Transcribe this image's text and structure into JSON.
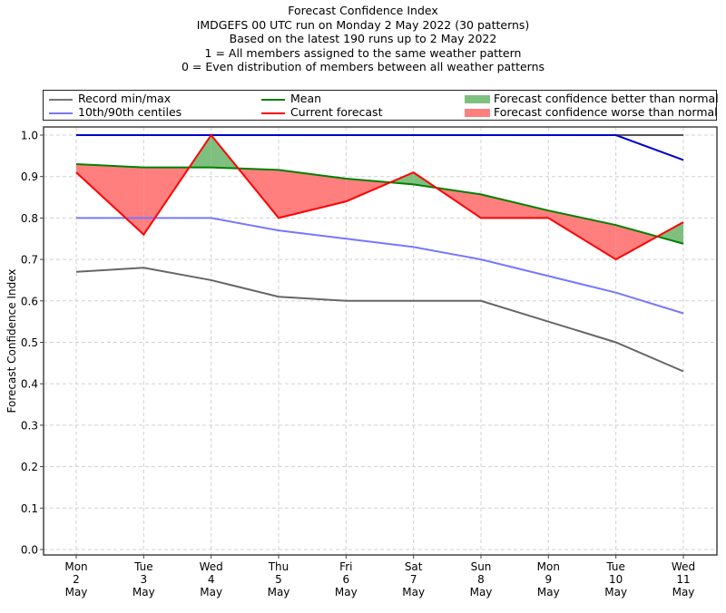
{
  "chart_data": {
    "type": "line",
    "title_lines": [
      "Forecast Confidence Index",
      "IMDGEFS 00 UTC run on Monday 2 May 2022 (30 patterns)",
      "Based on the latest 190 runs up to 2 May 2022",
      "1 = All members assigned to the same weather pattern",
      "0 = Even distribution of members between all weather patterns"
    ],
    "ylabel": "Forecast Confidence Index",
    "xlabel": "",
    "ylim": [
      0.0,
      1.0
    ],
    "yticks": [
      "0.0",
      "0.1",
      "0.2",
      "0.3",
      "0.4",
      "0.5",
      "0.6",
      "0.7",
      "0.8",
      "0.9",
      "1.0"
    ],
    "grid": true,
    "legend_placement": "top (above plot)",
    "categories": [
      {
        "day": "Mon",
        "date": "2",
        "month": "May"
      },
      {
        "day": "Tue",
        "date": "3",
        "month": "May"
      },
      {
        "day": "Wed",
        "date": "4",
        "month": "May"
      },
      {
        "day": "Thu",
        "date": "5",
        "month": "May"
      },
      {
        "day": "Fri",
        "date": "6",
        "month": "May"
      },
      {
        "day": "Sat",
        "date": "7",
        "month": "May"
      },
      {
        "day": "Sun",
        "date": "8",
        "month": "May"
      },
      {
        "day": "Mon",
        "date": "9",
        "month": "May"
      },
      {
        "day": "Tue",
        "date": "10",
        "month": "May"
      },
      {
        "day": "Wed",
        "date": "11",
        "month": "May"
      }
    ],
    "series": [
      {
        "name": "record-max",
        "color": "#555555",
        "values": [
          1.0,
          1.0,
          1.0,
          1.0,
          1.0,
          1.0,
          1.0,
          1.0,
          1.0,
          1.0
        ]
      },
      {
        "name": "record-min",
        "color": "#666666",
        "values": [
          0.67,
          0.68,
          0.65,
          0.61,
          0.6,
          0.6,
          0.6,
          0.55,
          0.5,
          0.43
        ]
      },
      {
        "name": "90th-centile",
        "color": "#0000cc",
        "values": [
          1.0,
          1.0,
          1.0,
          1.0,
          1.0,
          1.0,
          1.0,
          1.0,
          1.0,
          0.94
        ]
      },
      {
        "name": "10th-centile",
        "color": "#7777ff",
        "values": [
          0.8,
          0.8,
          0.8,
          0.77,
          0.75,
          0.73,
          0.7,
          0.66,
          0.62,
          0.57
        ]
      },
      {
        "name": "mean",
        "color": "#008000",
        "values": [
          0.93,
          0.922,
          0.922,
          0.916,
          0.895,
          0.881,
          0.857,
          0.818,
          0.783,
          0.738
        ]
      },
      {
        "name": "current-forecast",
        "color": "#ff0000",
        "values": [
          0.91,
          0.76,
          1.0,
          0.8,
          0.84,
          0.91,
          0.8,
          0.8,
          0.7,
          0.79
        ]
      }
    ],
    "legend": [
      {
        "label": "Record min/max",
        "kind": "line",
        "color": "#777777"
      },
      {
        "label": "10th/90th centiles",
        "kind": "line",
        "color": "#7777ff"
      },
      {
        "label": "Mean",
        "kind": "line",
        "color": "#008000"
      },
      {
        "label": "Current forecast",
        "kind": "line",
        "color": "#ff0000"
      },
      {
        "label": "Forecast confidence better than normal",
        "kind": "patch",
        "color": "#7fbf7f"
      },
      {
        "label": "Forecast confidence worse than normal",
        "kind": "patch",
        "color": "#ff7f7f"
      }
    ],
    "fill_colors": {
      "better": "#7fbf7f",
      "worse": "#ff7f7f"
    }
  }
}
